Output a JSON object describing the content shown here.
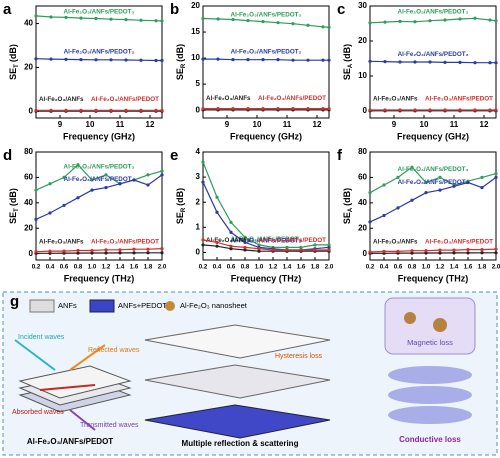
{
  "chart_data": [
    {
      "type": "line",
      "panel": "a",
      "xlabel": "Frequency (GHz)",
      "ylabel": {
        "main": "SE",
        "sub": "T",
        "unit": "(dB)"
      },
      "x": [
        8.2,
        8.7,
        9.2,
        9.7,
        10.2,
        10.7,
        11.2,
        11.7,
        12.2,
        12.4
      ],
      "xlim": [
        8.2,
        12.4
      ],
      "xticks": [
        9,
        10,
        11,
        12
      ],
      "ylim": [
        -3,
        48
      ],
      "yticks": [
        0,
        20,
        40
      ],
      "series": [
        {
          "name": "Al-Fe₂O₃/ANFs/PEDOT₃",
          "color": "#2e9e5b",
          "values": [
            43.5,
            43,
            42.8,
            42.5,
            42.3,
            42,
            41.8,
            41.5,
            41.3,
            41.2
          ]
        },
        {
          "name": "Al-Fe₂O₃/ANFs/PEDOT₂",
          "color": "#2a3aa8",
          "values": [
            24,
            23.8,
            23.7,
            23.6,
            23.5,
            23.5,
            23.4,
            23.3,
            23.2,
            23.2
          ]
        },
        {
          "name": "Al-Fe₂O₃/ANFs",
          "color": "#222222",
          "values": [
            0.1,
            0.1,
            0.1,
            0.1,
            0.1,
            0.1,
            0.1,
            0.1,
            0.1,
            0.1
          ]
        },
        {
          "name": "Al-Fe₂O₃/ANFs/PEDOT",
          "color": "#d32f2f",
          "values": [
            0.5,
            0.5,
            0.5,
            0.5,
            0.5,
            0.5,
            0.5,
            0.5,
            0.5,
            0.5
          ]
        }
      ]
    },
    {
      "type": "line",
      "panel": "b",
      "xlabel": "Frequency (GHz)",
      "ylabel": {
        "main": "SE",
        "sub": "R",
        "unit": "(dB)"
      },
      "x": [
        8.2,
        8.7,
        9.2,
        9.7,
        10.2,
        10.7,
        11.2,
        11.7,
        12.2,
        12.4
      ],
      "xlim": [
        8.2,
        12.4
      ],
      "xticks": [
        9,
        10,
        11,
        12
      ],
      "ylim": [
        -1.5,
        20
      ],
      "yticks": [
        0,
        5,
        10,
        15,
        20
      ],
      "series": [
        {
          "name": "Al-Fe₂O₃/ANFs/PEDOT₃",
          "color": "#2e9e5b",
          "values": [
            17.6,
            17.5,
            17.4,
            17.2,
            17,
            16.8,
            16.6,
            16.3,
            16,
            15.9
          ]
        },
        {
          "name": "Al-Fe₂O₃/ANFs/PEDOT₂",
          "color": "#2a3aa8",
          "values": [
            9.8,
            9.8,
            9.7,
            9.7,
            9.7,
            9.7,
            9.6,
            9.6,
            9.6,
            9.6
          ]
        },
        {
          "name": "Al-Fe₂O₃/ANFs",
          "color": "#222222",
          "values": [
            0.05,
            0.05,
            0.05,
            0.05,
            0.05,
            0.05,
            0.05,
            0.05,
            0.05,
            0.05
          ]
        },
        {
          "name": "Al-Fe₂O₃/ANFs/PEDOT",
          "color": "#d32f2f",
          "values": [
            0.3,
            0.3,
            0.3,
            0.3,
            0.3,
            0.3,
            0.3,
            0.3,
            0.3,
            0.3
          ]
        }
      ]
    },
    {
      "type": "line",
      "panel": "c",
      "xlabel": "Frequency (GHz)",
      "ylabel": {
        "main": "SE",
        "sub": "A",
        "unit": "(dB)"
      },
      "x": [
        8.2,
        8.7,
        9.2,
        9.7,
        10.2,
        10.7,
        11.2,
        11.7,
        12.2,
        12.4
      ],
      "xlim": [
        8.2,
        12.4
      ],
      "xticks": [
        9,
        10,
        11,
        12
      ],
      "ylim": [
        -2,
        30
      ],
      "yticks": [
        0,
        10,
        20,
        30
      ],
      "series": [
        {
          "name": "Al-Fe₂O₃/ANFs/PEDOT₃",
          "color": "#2e9e5b",
          "values": [
            25.2,
            25.4,
            25.6,
            25.5,
            25.8,
            26,
            26.3,
            26.5,
            26,
            25.8
          ]
        },
        {
          "name": "Al-Fe₂O₃/ANFs/PEDOT₂",
          "color": "#2a3aa8",
          "values": [
            14.2,
            14.1,
            14,
            14,
            14,
            13.9,
            13.9,
            13.8,
            13.8,
            13.8
          ]
        },
        {
          "name": "Al-Fe₂O₃/ANFs",
          "color": "#222222",
          "values": [
            0.05,
            0.05,
            0.05,
            0.05,
            0.05,
            0.05,
            0.05,
            0.05,
            0.05,
            0.05
          ]
        },
        {
          "name": "Al-Fe₂O₃/ANFs/PEDOT",
          "color": "#d32f2f",
          "values": [
            0.3,
            0.3,
            0.3,
            0.3,
            0.3,
            0.3,
            0.3,
            0.3,
            0.3,
            0.3
          ]
        }
      ]
    },
    {
      "type": "line",
      "panel": "d",
      "xlabel": "Frequency (THz)",
      "ylabel": {
        "main": "SE",
        "sub": "T",
        "unit": "(dB)"
      },
      "x": [
        0.2,
        0.4,
        0.6,
        0.8,
        1.0,
        1.2,
        1.4,
        1.6,
        1.8,
        2.0
      ],
      "xlim": [
        0.2,
        2.0
      ],
      "xticks": [
        0.2,
        0.4,
        0.6,
        0.8,
        {
          "value": 1,
          "label": "1.0"
        },
        1.2,
        1.4,
        1.6,
        1.8,
        {
          "value": 2,
          "label": "2.0"
        }
      ],
      "ylim": [
        -5,
        80
      ],
      "yticks": [
        0,
        20,
        40,
        60,
        80
      ],
      "series": [
        {
          "name": "Al-Fe₂O₃/ANFs/PEDOT₃",
          "color": "#2e9e5b",
          "values": [
            50,
            55,
            60,
            70,
            58,
            62,
            55,
            58,
            62,
            65
          ]
        },
        {
          "name": "Al-Fe₂O₃/ANFs/PEDOT₂",
          "color": "#2a3aa8",
          "values": [
            27,
            32,
            38,
            44,
            50,
            52,
            55,
            58,
            54,
            62
          ]
        },
        {
          "name": "Al-Fe₂O₃/ANFs",
          "color": "#222222",
          "values": [
            0.3,
            0.3,
            0.4,
            0.4,
            0.5,
            0.5,
            0.6,
            0.6,
            0.7,
            0.7
          ]
        },
        {
          "name": "Al-Fe₂O₃/ANFs/PEDOT",
          "color": "#d32f2f",
          "values": [
            1.5,
            2,
            2,
            2.5,
            2.5,
            3,
            3,
            3.5,
            3.5,
            4
          ]
        }
      ]
    },
    {
      "type": "line",
      "panel": "e",
      "xlabel": "Frequency (THz)",
      "ylabel": {
        "main": "SE",
        "sub": "R",
        "unit": "(dB)"
      },
      "x": [
        0.2,
        0.4,
        0.6,
        0.8,
        1.0,
        1.2,
        1.4,
        1.6,
        1.8,
        2.0
      ],
      "xlim": [
        0.2,
        2.0
      ],
      "xticks": [
        0.2,
        0.4,
        0.6,
        0.8,
        {
          "value": 1,
          "label": "1.0"
        },
        1.2,
        1.4,
        1.6,
        1.8,
        {
          "value": 2,
          "label": "2.0"
        }
      ],
      "ylim": [
        -0.3,
        4
      ],
      "yticks": [
        0,
        1,
        2,
        3,
        4
      ],
      "series": [
        {
          "name": "Al-Fe₂O₃/ANFs/PEDOT₃",
          "color": "#2e9e5b",
          "values": [
            3.6,
            2.2,
            1.2,
            0.6,
            0.3,
            0.2,
            0.2,
            0.2,
            0.3,
            0.3
          ]
        },
        {
          "name": "Al-Fe₂O₃/ANFs/PEDOT₂",
          "color": "#2a3aa8",
          "values": [
            2.8,
            1.6,
            0.8,
            0.4,
            0.2,
            0.15,
            0.1,
            0.1,
            0.15,
            0.2
          ]
        },
        {
          "name": "Al-Fe₂O₃/ANFs",
          "color": "#222222",
          "values": [
            0.3,
            0.25,
            0.15,
            0.1,
            0.05,
            0.05,
            0.05,
            0.05,
            0.05,
            0.05
          ]
        },
        {
          "name": "Al-Fe₂O₃/ANFs/PEDOT",
          "color": "#d32f2f",
          "values": [
            0.5,
            0.4,
            0.25,
            0.2,
            0.15,
            0.1,
            0.1,
            0.1,
            0.1,
            0.1
          ]
        }
      ]
    },
    {
      "type": "line",
      "panel": "f",
      "xlabel": "Frequency (THz)",
      "ylabel": {
        "main": "SE",
        "sub": "A",
        "unit": "(dB)"
      },
      "x": [
        0.2,
        0.4,
        0.6,
        0.8,
        1.0,
        1.2,
        1.4,
        1.6,
        1.8,
        2.0
      ],
      "xlim": [
        0.2,
        2.0
      ],
      "xticks": [
        0.2,
        0.4,
        0.6,
        0.8,
        {
          "value": 1,
          "label": "1.0"
        },
        1.2,
        1.4,
        1.6,
        1.8,
        {
          "value": 2,
          "label": "2.0"
        }
      ],
      "ylim": [
        -5,
        80
      ],
      "yticks": [
        0,
        20,
        40,
        60,
        80
      ],
      "series": [
        {
          "name": "Al-Fe₂O₃/ANFs/PEDOT₃",
          "color": "#2e9e5b",
          "values": [
            48,
            54,
            60,
            68,
            56,
            60,
            54,
            57,
            60,
            63
          ]
        },
        {
          "name": "Al-Fe₂O₃/ANFs/PEDOT₂",
          "color": "#2a3aa8",
          "values": [
            25,
            30,
            36,
            42,
            48,
            50,
            53,
            56,
            52,
            60
          ]
        },
        {
          "name": "Al-Fe₂O₃/ANFs",
          "color": "#222222",
          "values": [
            0.3,
            0.3,
            0.4,
            0.4,
            0.5,
            0.5,
            0.6,
            0.6,
            0.7,
            0.7
          ]
        },
        {
          "name": "Al-Fe₂O₃/ANFs/PEDOT",
          "color": "#d32f2f",
          "values": [
            1.3,
            1.8,
            1.8,
            2.3,
            2.3,
            2.8,
            2.8,
            3.2,
            3.2,
            3.6
          ]
        }
      ]
    }
  ],
  "diagram": {
    "panel": "g",
    "legend": [
      "ANFs",
      "ANFs+PEDOT",
      "Al-Fe₂O₃ nanosheet"
    ],
    "waves": [
      "Incident waves",
      "Reflected waves",
      "Absorbed waves",
      "Transmitted waves"
    ],
    "sample": "Al-Fe₂O₃/ANFs/PEDOT",
    "hysteresis": "Hysteresis loss",
    "middle": "Multiple reflection & scattering",
    "magnetic": "Magnetic loss",
    "conductive": "Conductive loss"
  }
}
